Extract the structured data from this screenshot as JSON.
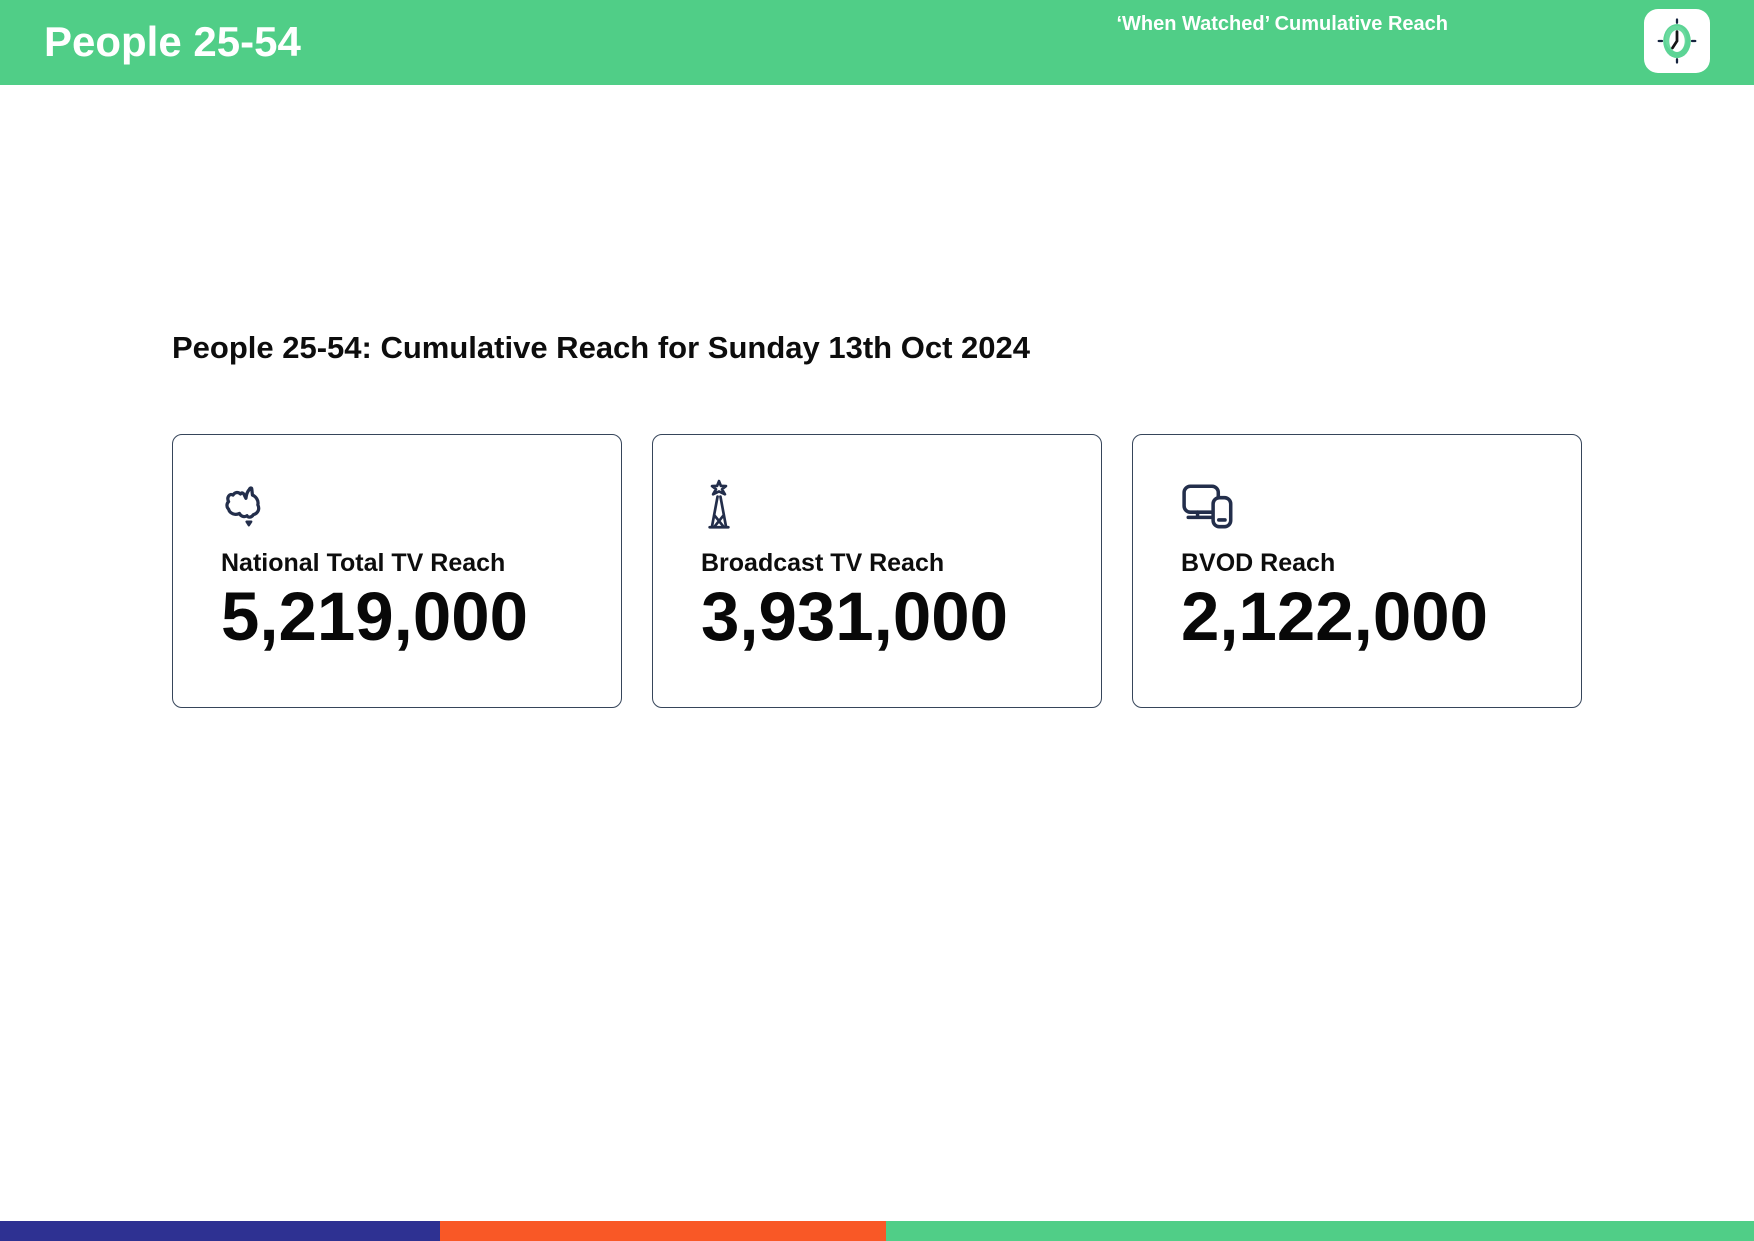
{
  "header": {
    "title": "People 25-54",
    "right_label": "‘When Watched’ Cumulative Reach",
    "logo_icon": "clock-logo",
    "bg_color": "#50CE87"
  },
  "main": {
    "heading": "People 25-54: Cumulative Reach for Sunday 13th Oct 2024",
    "cards": [
      {
        "icon": "australia-map-icon",
        "label": "National Total TV Reach",
        "value": "5,219,000"
      },
      {
        "icon": "broadcast-tower-icon",
        "label": "Broadcast TV Reach",
        "value": "3,931,000"
      },
      {
        "icon": "tv-devices-icon",
        "label": "BVOD Reach",
        "value": "2,122,000"
      }
    ]
  },
  "footer": {
    "segments": [
      {
        "name": "blue",
        "color": "#2E3192",
        "width_pct": 25.1
      },
      {
        "name": "orange",
        "color": "#F95826",
        "width_pct": 25.4
      },
      {
        "name": "green",
        "color": "#50CE87",
        "width_pct": 49.5
      }
    ]
  },
  "colors": {
    "accent_green": "#50CE87",
    "icon_navy": "#232E4B",
    "card_border": "#36455A"
  }
}
